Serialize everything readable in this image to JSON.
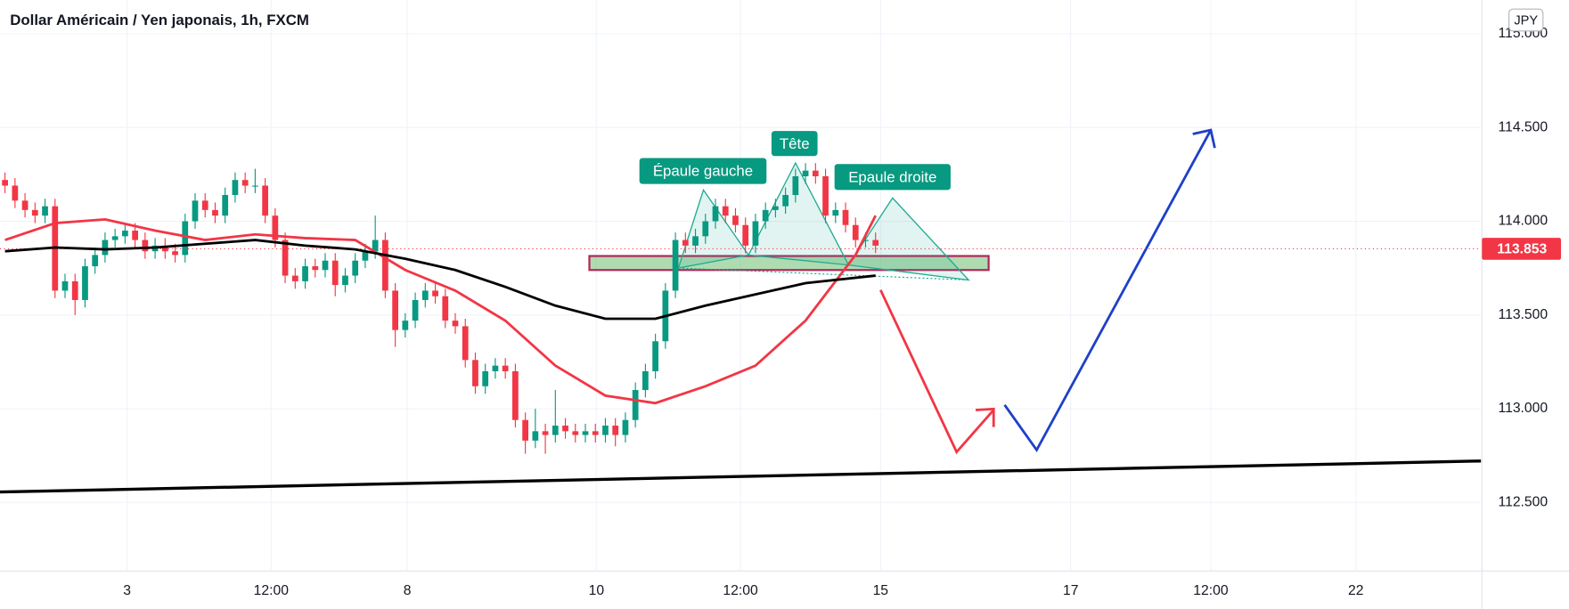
{
  "chart_data": {
    "type": "candlestick",
    "title": "Dollar Américain / Yen japonais, 1h, FXCM",
    "currency": "JPY",
    "up_color": "#089981",
    "down_color": "#f23645",
    "x": [
      0,
      1,
      2,
      3,
      4,
      5,
      6,
      7,
      8,
      9,
      10,
      11,
      12,
      13,
      14,
      15,
      16,
      17,
      18,
      19,
      20,
      21,
      22,
      23,
      24,
      25,
      26,
      27,
      28,
      29,
      30,
      31,
      32,
      33,
      34,
      35,
      36,
      37,
      38,
      39,
      40,
      41,
      42,
      43,
      44,
      45,
      46,
      47,
      48,
      49,
      50,
      51,
      52,
      53,
      54,
      55,
      56,
      57,
      58,
      59,
      60,
      61,
      62,
      63,
      64,
      65,
      66,
      67,
      68,
      69,
      70,
      71,
      72,
      73,
      74,
      75,
      76,
      77,
      78,
      79,
      80,
      81,
      82,
      83,
      84,
      85,
      86,
      87
    ],
    "open": [
      114.22,
      114.19,
      114.11,
      114.06,
      114.03,
      114.08,
      113.63,
      113.68,
      113.58,
      113.76,
      113.82,
      113.9,
      113.92,
      113.95,
      113.9,
      113.84,
      113.87,
      113.84,
      113.82,
      114.0,
      114.11,
      114.06,
      114.03,
      114.14,
      114.22,
      114.19,
      114.19,
      114.03,
      113.9,
      113.71,
      113.68,
      113.76,
      113.74,
      113.79,
      113.66,
      113.71,
      113.79,
      113.84,
      113.9,
      113.63,
      113.42,
      113.47,
      113.58,
      113.63,
      113.6,
      113.47,
      113.44,
      113.26,
      113.12,
      113.2,
      113.23,
      113.2,
      112.94,
      112.83,
      112.88,
      112.86,
      112.91,
      112.88,
      112.86,
      112.88,
      112.86,
      112.91,
      112.86,
      112.94,
      113.1,
      113.2,
      113.36,
      113.63,
      113.9,
      113.87,
      113.92,
      114.0,
      114.08,
      114.03,
      113.98,
      113.87,
      114.0,
      114.06,
      114.08,
      114.14,
      114.24,
      114.27,
      114.24,
      114.03,
      114.06,
      113.98,
      113.9,
      113.9
    ],
    "high": [
      114.26,
      114.23,
      114.15,
      114.1,
      114.12,
      114.12,
      113.72,
      113.72,
      113.8,
      113.86,
      113.94,
      113.96,
      113.99,
      113.99,
      113.94,
      113.91,
      113.91,
      113.88,
      114.04,
      114.15,
      114.15,
      114.1,
      114.18,
      114.26,
      114.26,
      114.28,
      114.23,
      114.07,
      113.94,
      113.75,
      113.8,
      113.8,
      113.83,
      113.83,
      113.75,
      113.83,
      113.88,
      114.03,
      113.94,
      113.67,
      113.51,
      113.62,
      113.67,
      113.67,
      113.64,
      113.51,
      113.48,
      113.3,
      113.24,
      113.27,
      113.27,
      113.24,
      112.98,
      113.0,
      112.92,
      113.1,
      112.95,
      112.92,
      112.92,
      112.92,
      112.95,
      112.95,
      112.98,
      113.14,
      113.24,
      113.4,
      113.67,
      113.94,
      113.94,
      113.96,
      114.04,
      114.12,
      114.12,
      114.07,
      114.02,
      114.04,
      114.1,
      114.12,
      114.18,
      114.28,
      114.31,
      114.31,
      114.28,
      114.1,
      114.1,
      114.02,
      113.94,
      113.94
    ],
    "low": [
      114.15,
      114.07,
      114.02,
      113.99,
      113.99,
      113.59,
      113.59,
      113.5,
      113.54,
      113.72,
      113.78,
      113.86,
      113.88,
      113.86,
      113.8,
      113.8,
      113.8,
      113.78,
      113.78,
      113.96,
      114.02,
      113.99,
      113.99,
      114.1,
      114.15,
      114.15,
      113.99,
      113.86,
      113.67,
      113.64,
      113.64,
      113.7,
      113.7,
      113.6,
      113.62,
      113.67,
      113.75,
      113.8,
      113.59,
      113.33,
      113.38,
      113.43,
      113.54,
      113.56,
      113.43,
      113.4,
      113.22,
      113.08,
      113.08,
      113.16,
      113.16,
      112.9,
      112.76,
      112.79,
      112.76,
      112.82,
      112.84,
      112.82,
      112.82,
      112.82,
      112.82,
      112.8,
      112.82,
      112.9,
      113.06,
      113.16,
      113.32,
      113.59,
      113.83,
      113.83,
      113.88,
      113.96,
      113.99,
      113.94,
      113.83,
      113.83,
      113.96,
      114.02,
      114.04,
      114.1,
      114.2,
      114.2,
      113.99,
      113.99,
      113.94,
      113.86,
      113.86,
      113.83
    ],
    "close": [
      114.19,
      114.11,
      114.06,
      114.03,
      114.08,
      113.63,
      113.68,
      113.58,
      113.76,
      113.82,
      113.9,
      113.92,
      113.95,
      113.9,
      113.84,
      113.87,
      113.84,
      113.82,
      114.0,
      114.11,
      114.06,
      114.03,
      114.14,
      114.22,
      114.19,
      114.19,
      114.03,
      113.9,
      113.71,
      113.68,
      113.76,
      113.74,
      113.79,
      113.66,
      113.71,
      113.79,
      113.84,
      113.9,
      113.63,
      113.42,
      113.47,
      113.58,
      113.63,
      113.6,
      113.47,
      113.44,
      113.26,
      113.12,
      113.2,
      113.23,
      113.2,
      112.94,
      112.83,
      112.88,
      112.86,
      112.91,
      112.88,
      112.86,
      112.88,
      112.86,
      112.91,
      112.86,
      112.94,
      113.1,
      113.2,
      113.36,
      113.63,
      113.9,
      113.87,
      113.92,
      114.0,
      114.08,
      114.03,
      113.98,
      113.87,
      114.0,
      114.06,
      114.08,
      114.14,
      114.24,
      114.27,
      114.24,
      114.03,
      114.06,
      113.98,
      113.9,
      113.9,
      113.87
    ],
    "series": [
      {
        "color": "#f23645",
        "x": [
          0,
          5,
          10,
          15,
          20,
          25,
          30,
          35,
          40,
          45,
          50,
          55,
          60,
          65,
          70,
          75,
          80,
          85,
          87
        ],
        "values": [
          113.9,
          113.99,
          114.01,
          113.95,
          113.9,
          113.93,
          113.91,
          113.9,
          113.74,
          113.63,
          113.47,
          113.23,
          113.07,
          113.03,
          113.12,
          113.23,
          113.47,
          113.82,
          114.03
        ]
      },
      {
        "color": "#000000",
        "x": [
          0,
          5,
          10,
          15,
          20,
          25,
          30,
          35,
          40,
          45,
          50,
          55,
          60,
          65,
          70,
          75,
          80,
          87
        ],
        "values": [
          113.84,
          113.86,
          113.85,
          113.86,
          113.88,
          113.9,
          113.87,
          113.85,
          113.8,
          113.74,
          113.65,
          113.55,
          113.48,
          113.48,
          113.55,
          113.61,
          113.67,
          113.71
        ]
      }
    ],
    "xlim": [
      -0.5,
      147.5
    ],
    "ylim": [
      112.14,
      115.18
    ],
    "xticks": [
      {
        "value": 12.2,
        "label": "3"
      },
      {
        "value": 26.6,
        "label": "12:00"
      },
      {
        "value": 40.2,
        "label": "8"
      },
      {
        "value": 59.1,
        "label": "10"
      },
      {
        "value": 73.5,
        "label": "12:00"
      },
      {
        "value": 87.5,
        "label": "15"
      },
      {
        "value": 106.5,
        "label": "17"
      },
      {
        "value": 120.5,
        "label": "12:00"
      },
      {
        "value": 135,
        "label": "22"
      }
    ],
    "yticks": [
      {
        "value": 112.5,
        "label": "112.500"
      },
      {
        "value": 113,
        "label": "113.000"
      },
      {
        "value": 113.5,
        "label": "113.500"
      },
      {
        "value": 114,
        "label": "114.000"
      },
      {
        "value": 114.5,
        "label": "114.500"
      },
      {
        "value": 115,
        "label": "115.000"
      }
    ],
    "last_price": {
      "value": 113.853,
      "label": "113.853"
    },
    "grid": true,
    "annotations": [
      "Épaule gauche",
      "Tête",
      "Epaule droite"
    ]
  }
}
